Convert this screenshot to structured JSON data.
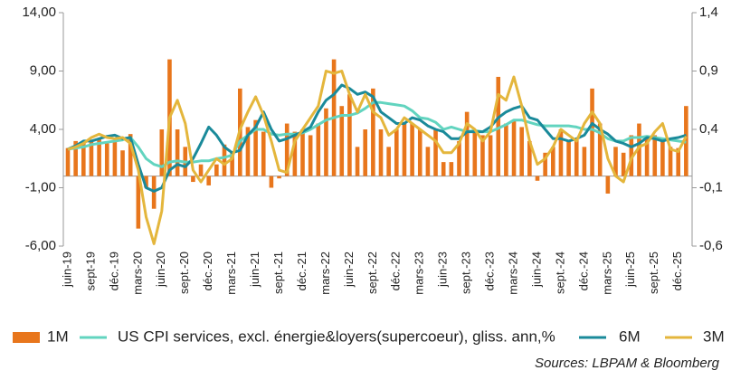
{
  "chart_data": {
    "type": "bar",
    "categories": [
      "juin-19",
      null,
      null,
      "sept-19",
      null,
      null,
      "déc.-19",
      null,
      null,
      "mars-20",
      null,
      null,
      "juin-20",
      null,
      null,
      "sept.-20",
      null,
      null,
      "déc.-20",
      null,
      null,
      "mars-21",
      null,
      null,
      "juin-21",
      null,
      null,
      "sept.-21",
      null,
      null,
      "déc.-21",
      null,
      null,
      "mars-22",
      null,
      null,
      "juin-22",
      null,
      null,
      "sept.-22",
      null,
      null,
      "déc.-22",
      null,
      null,
      "mars-23",
      null,
      null,
      "juin-23",
      null,
      null,
      "sept.-23",
      null,
      null,
      "déc.-23",
      null,
      null,
      "mars-24",
      null,
      null,
      "juin-24",
      null,
      null,
      "sept.-24",
      null,
      null,
      "déc.-24",
      null,
      null,
      "mars-25",
      null,
      null,
      "juin-25",
      null,
      null,
      "sept.-25",
      null,
      null,
      "déc.-25",
      null
    ],
    "series": [
      {
        "name": "1M",
        "type": "bar",
        "axis": "y2",
        "color": "#e8761c",
        "values": [
          0.24,
          0.3,
          0.28,
          0.3,
          0.32,
          0.28,
          0.3,
          0.22,
          0.36,
          -0.45,
          -0.1,
          -0.28,
          0.4,
          1.0,
          0.4,
          0.25,
          -0.05,
          0.1,
          -0.08,
          0.1,
          0.27,
          0.2,
          0.75,
          0.42,
          0.48,
          0.38,
          -0.1,
          -0.02,
          0.45,
          0.38,
          0.4,
          0.35,
          0.45,
          0.58,
          1.0,
          0.6,
          0.7,
          0.25,
          0.4,
          0.75,
          0.4,
          0.25,
          0.4,
          0.45,
          0.45,
          0.4,
          0.25,
          0.4,
          0.12,
          0.12,
          0.3,
          0.55,
          0.4,
          0.35,
          0.35,
          0.85,
          0.45,
          0.48,
          0.42,
          0.3,
          -0.04,
          0.2,
          0.25,
          0.4,
          0.3,
          0.32,
          0.25,
          0.75,
          0.45,
          -0.15,
          0.25,
          0.2,
          0.35,
          0.45,
          0.35,
          0.35,
          0.3,
          0.25,
          0.24,
          0.6
        ]
      },
      {
        "name": "US CPI services, excl. énergie&loyers(supercoeur), gliss. ann,%",
        "type": "line",
        "color": "#62d4bf",
        "values": [
          2.3,
          2.4,
          2.5,
          2.7,
          2.8,
          2.9,
          3.0,
          3.1,
          3.3,
          2.5,
          1.5,
          1.0,
          0.8,
          1.2,
          1.3,
          1.2,
          1.2,
          1.3,
          1.3,
          1.5,
          1.6,
          1.8,
          3.0,
          3.5,
          4.0,
          4.0,
          3.6,
          3.5,
          3.6,
          3.6,
          3.7,
          4.0,
          4.4,
          4.8,
          5.0,
          5.2,
          5.2,
          5.4,
          5.8,
          6.3,
          6.3,
          6.2,
          6.1,
          6.0,
          5.6,
          5.0,
          4.9,
          4.6,
          4.0,
          4.2,
          4.0,
          3.8,
          3.9,
          3.8,
          3.8,
          4.1,
          4.4,
          4.8,
          4.8,
          4.6,
          4.4,
          4.3,
          4.3,
          4.3,
          4.3,
          4.2,
          4.0,
          4.0,
          3.7,
          3.2,
          3.0,
          3.0,
          3.3,
          3.3,
          3.4,
          3.3,
          3.2,
          3.1,
          3.0,
          2.9
        ]
      },
      {
        "name": "6M",
        "type": "line",
        "color": "#1a8a9a",
        "values": [
          2.3,
          2.6,
          3.0,
          3.0,
          3.2,
          3.4,
          3.5,
          3.2,
          3.3,
          1.0,
          -1.0,
          -1.3,
          -1.0,
          0.5,
          1.0,
          0.8,
          1.5,
          2.8,
          4.2,
          3.5,
          2.5,
          2.0,
          2.2,
          3.5,
          4.2,
          5.5,
          4.0,
          3.0,
          3.2,
          3.5,
          3.8,
          4.2,
          5.5,
          6.5,
          7.0,
          7.8,
          7.5,
          7.0,
          7.2,
          6.8,
          5.5,
          5.0,
          4.5,
          4.5,
          5.0,
          4.8,
          4.3,
          4.0,
          3.8,
          3.2,
          3.2,
          3.8,
          3.8,
          3.8,
          4.2,
          5.0,
          5.5,
          5.8,
          6.0,
          5.0,
          4.8,
          4.0,
          3.2,
          3.2,
          3.0,
          3.2,
          3.5,
          4.5,
          4.0,
          3.6,
          3.0,
          2.8,
          2.5,
          2.8,
          3.3,
          3.2,
          3.0,
          3.2,
          3.3,
          3.5
        ]
      },
      {
        "name": "3M",
        "type": "line",
        "color": "#e4b63c",
        "values": [
          2.3,
          2.5,
          2.8,
          3.3,
          3.6,
          3.3,
          3.2,
          3.3,
          2.8,
          0.5,
          -3.5,
          -5.8,
          -3.0,
          5.0,
          6.5,
          4.5,
          0.5,
          -0.5,
          0.5,
          1.5,
          1.0,
          1.5,
          4.0,
          5.5,
          6.8,
          5.2,
          3.0,
          0.5,
          0.3,
          3.0,
          4.0,
          5.0,
          6.0,
          9.0,
          8.8,
          9.0,
          7.0,
          5.5,
          7.0,
          5.5,
          5.0,
          3.5,
          4.0,
          5.0,
          4.5,
          4.0,
          3.5,
          3.0,
          2.0,
          2.0,
          2.8,
          4.5,
          4.0,
          3.0,
          3.8,
          7.0,
          6.5,
          8.5,
          6.0,
          3.0,
          1.0,
          1.5,
          2.5,
          4.0,
          3.5,
          3.0,
          4.5,
          5.5,
          4.5,
          1.5,
          0.0,
          -0.5,
          1.5,
          2.5,
          2.8,
          3.8,
          4.5,
          2.3,
          2.1,
          3.4
        ]
      }
    ],
    "ylim": [
      -6,
      14
    ],
    "yticks": [
      {
        "value": -6,
        "label": "-6,00"
      },
      {
        "value": -1,
        "label": "-1,00"
      },
      {
        "value": 4,
        "label": "4,00"
      },
      {
        "value": 9,
        "label": "9,00"
      },
      {
        "value": 14,
        "label": "14,00"
      }
    ],
    "y2lim": [
      -0.6,
      1.4
    ],
    "y2ticks": [
      {
        "value": -0.6,
        "label": "-0,6"
      },
      {
        "value": -0.1,
        "label": "-0,1"
      },
      {
        "value": 0.4,
        "label": "0,4"
      },
      {
        "value": 0.9,
        "label": "0,9"
      },
      {
        "value": 1.4,
        "label": "1,4"
      }
    ],
    "grid": false,
    "source": "Sources: LBPAM & Bloomberg"
  }
}
